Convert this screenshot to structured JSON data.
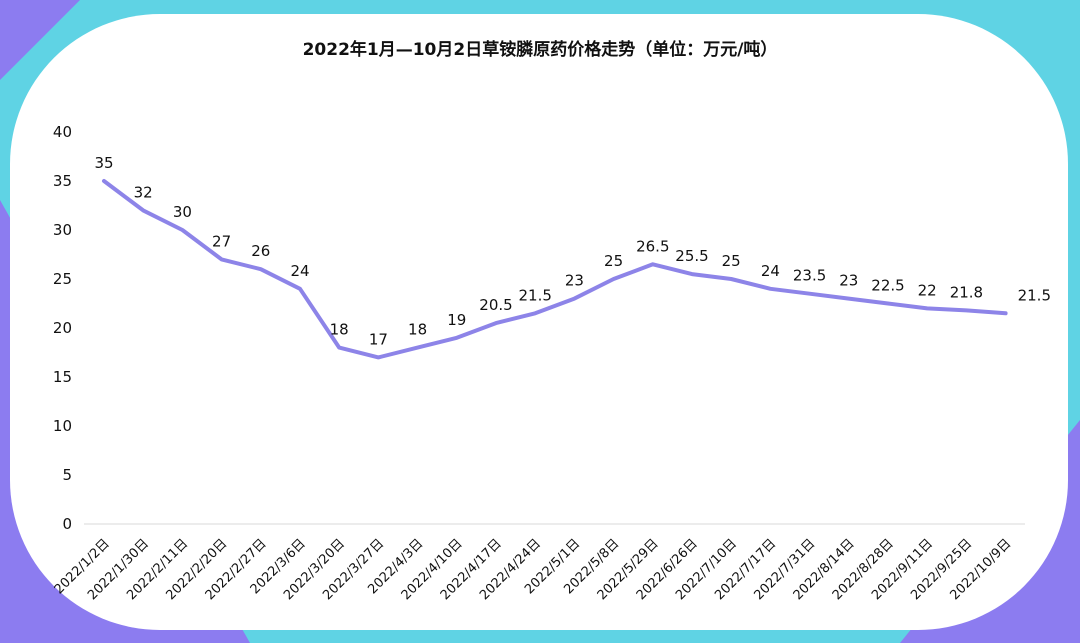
{
  "colors": {
    "line": "#8d84e8",
    "background": "#5fd3e4",
    "accent": "#8c7cf0",
    "card": "#ffffff"
  },
  "chart_data": {
    "type": "line",
    "title": "2022年1月—10月2日草铵膦原药价格走势（单位：万元/吨）",
    "xlabel": "",
    "ylabel": "",
    "ylim": [
      0,
      40
    ],
    "yticks": [
      0,
      5,
      10,
      15,
      20,
      25,
      30,
      35,
      40
    ],
    "grid": false,
    "legend": "none",
    "categories": [
      "2022/1/2日",
      "2022/1/30日",
      "2022/2/11日",
      "2022/2/20日",
      "2022/2/27日",
      "2022/3/6日",
      "2022/3/20日",
      "2022/3/27日",
      "2022/4/3日",
      "2022/4/10日",
      "2022/4/17日",
      "2022/4/24日",
      "2022/5/1日",
      "2022/5/8日",
      "2022/5/29日",
      "2022/6/26日",
      "2022/7/10日",
      "2022/7/17日",
      "2022/7/31日",
      "2022/8/14日",
      "2022/8/28日",
      "2022/9/11日",
      "2022/9/25日",
      "2022/10/9日"
    ],
    "values": [
      35,
      32,
      30,
      27,
      26,
      24,
      18,
      17,
      18,
      19,
      20.5,
      21.5,
      23,
      25,
      26.5,
      25.5,
      25,
      24,
      23.5,
      23,
      22.5,
      22,
      21.8,
      21.5
    ],
    "data_labels": [
      "35",
      "32",
      "30",
      "27",
      "26",
      "24",
      "18",
      "17",
      "18",
      "19",
      "20.5",
      "21.5",
      "23",
      "25",
      "26.5",
      "25.5",
      "25",
      "24",
      "23.5",
      "23",
      "22.5",
      "22",
      "21.8",
      "21.5"
    ]
  }
}
